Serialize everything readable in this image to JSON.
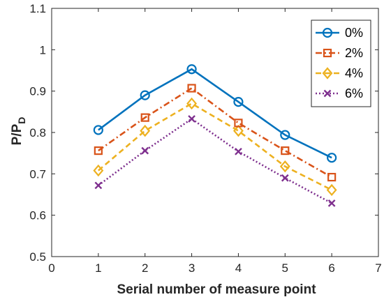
{
  "chart_data": {
    "type": "line",
    "title": "",
    "xlabel": "Serial number of measure point",
    "ylabel_main": "P/P",
    "ylabel_sub": "D",
    "xlim": [
      0,
      7
    ],
    "ylim": [
      0.5,
      1.1
    ],
    "xticks": [
      "0",
      "1",
      "2",
      "3",
      "4",
      "5",
      "6",
      "7"
    ],
    "yticks": [
      "0.5",
      "0.6",
      "0.7",
      "0.8",
      "0.9",
      "1",
      "1.1"
    ],
    "x": [
      1,
      2,
      3,
      4,
      5,
      6
    ],
    "grid": false,
    "legend_position": "top-right",
    "series": [
      {
        "name": "0%",
        "color": "#0072BD",
        "dash": "solid",
        "marker": "circle",
        "values": [
          0.806,
          0.89,
          0.953,
          0.874,
          0.794,
          0.739
        ]
      },
      {
        "name": "2%",
        "color": "#D95319",
        "dash": "dashdot",
        "marker": "square",
        "values": [
          0.756,
          0.836,
          0.907,
          0.823,
          0.756,
          0.692
        ]
      },
      {
        "name": "4%",
        "color": "#EDB120",
        "dash": "dashed",
        "marker": "diamond",
        "values": [
          0.708,
          0.804,
          0.87,
          0.804,
          0.718,
          0.661
        ]
      },
      {
        "name": "6%",
        "color": "#7E2F8E",
        "dash": "dotted",
        "marker": "x",
        "values": [
          0.672,
          0.756,
          0.833,
          0.754,
          0.69,
          0.629
        ]
      }
    ]
  }
}
